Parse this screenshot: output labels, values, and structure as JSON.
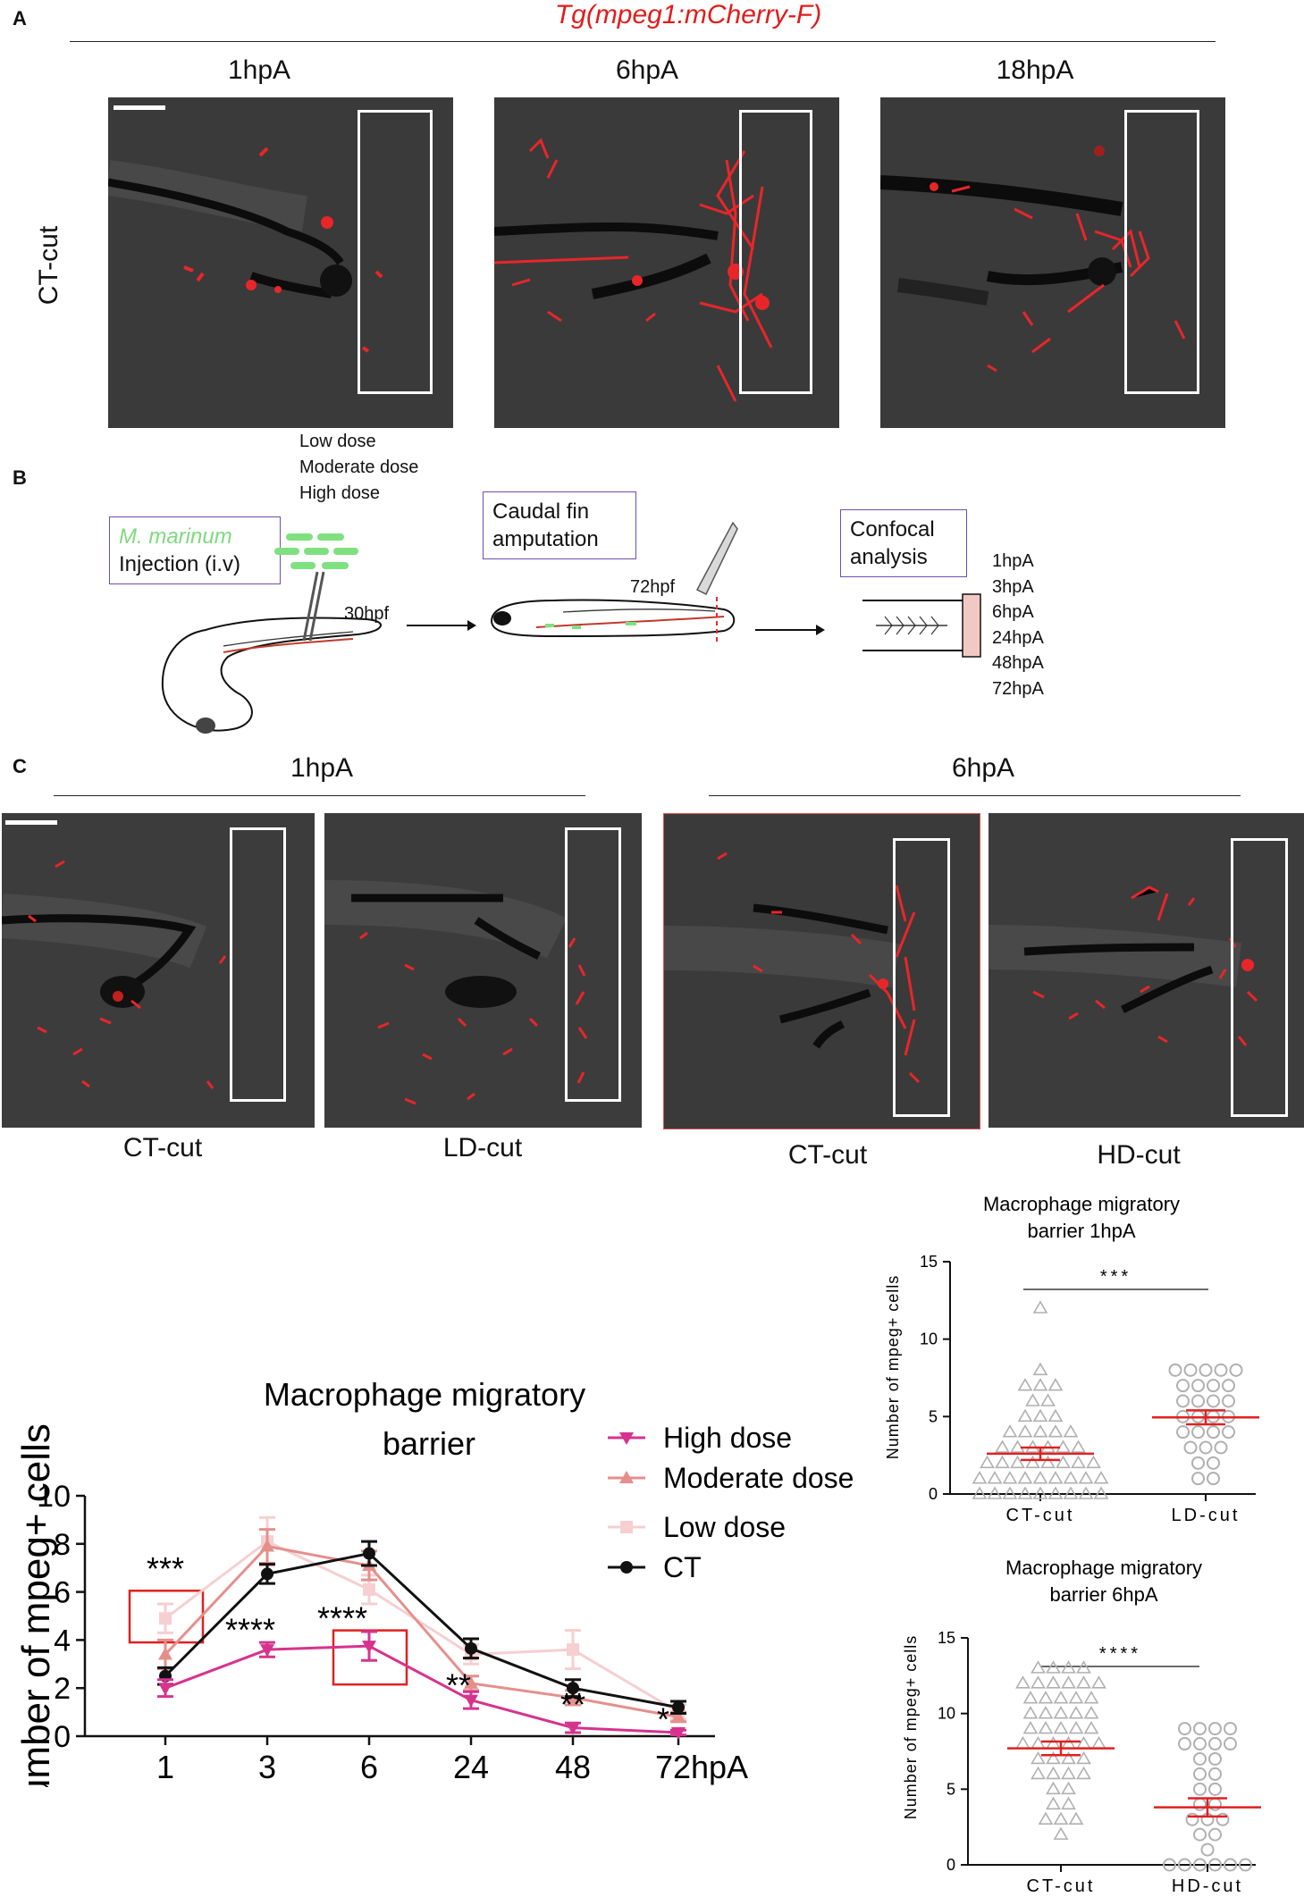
{
  "panelA": {
    "letter": "A",
    "transgene": "Tg(mpeg1:mCherry-F)",
    "row_label": "CT-cut",
    "timepoints": [
      "1hpA",
      "6hpA",
      "18hpA"
    ]
  },
  "panelB": {
    "letter": "B",
    "doses": [
      "Low dose",
      "Moderate dose",
      "High dose"
    ],
    "species": "M. marinum",
    "injection": "Injection (i.v)",
    "inject_time": "30hpf",
    "amputation_box": [
      "Caudal fin",
      "amputation"
    ],
    "amputation_time": "72hpf",
    "confocal_box": [
      "Confocal",
      "analysis"
    ],
    "timepoints": [
      "1hpA",
      "3hpA",
      "6hpA",
      "24hpA",
      "48hpA",
      "72hpA"
    ]
  },
  "panelC": {
    "letter": "C",
    "group_left": "1hpA",
    "group_right": "6hpA",
    "captions": [
      "CT-cut",
      "LD-cut",
      "CT-cut",
      "HD-cut"
    ]
  },
  "colors": {
    "high": "#d6338d",
    "moderate": "#e58f8c",
    "low": "#f6cfd1",
    "ct": "#111111",
    "mean_line": "#e02020",
    "box_red": "#e02020",
    "points": "#b0b0b0"
  },
  "chart_data": [
    {
      "type": "line",
      "title_line1": "Macrophage migratory",
      "title_line2": "barrier",
      "ylabel": "Number of mpeg+ cells",
      "x": [
        "1",
        "3",
        "6",
        "24",
        "48",
        "72hpA"
      ],
      "ylim": [
        0,
        10
      ],
      "yticks": [
        "0",
        "2",
        "4",
        "6",
        "8",
        "10"
      ],
      "legend": [
        "High dose",
        "Moderate dose",
        "Low dose",
        "CT"
      ],
      "series": [
        {
          "name": "High dose",
          "values": [
            2.0,
            3.6,
            3.75,
            1.5,
            0.35,
            0.15
          ],
          "errors": [
            0.35,
            0.3,
            0.6,
            0.35,
            0.2,
            0.1
          ]
        },
        {
          "name": "Moderate dose",
          "values": [
            3.4,
            7.9,
            7.1,
            2.2,
            1.6,
            0.8
          ],
          "errors": [
            0.6,
            0.7,
            0.6,
            0.3,
            0.3,
            0.2
          ]
        },
        {
          "name": "Low dose",
          "values": [
            4.9,
            8.1,
            6.1,
            3.4,
            3.6,
            1.0
          ],
          "errors": [
            0.6,
            1.0,
            0.6,
            0.4,
            0.8,
            0.3
          ]
        },
        {
          "name": "CT",
          "values": [
            2.5,
            6.75,
            7.6,
            3.65,
            2.0,
            1.2
          ],
          "errors": [
            0.35,
            0.4,
            0.5,
            0.4,
            0.35,
            0.25
          ]
        }
      ],
      "annotations": [
        "***",
        "****",
        "****",
        "**",
        "**",
        "*"
      ]
    },
    {
      "type": "scatter",
      "title_line1": "Macrophage migratory",
      "title_line2": "barrier 1hpA",
      "ylabel": "Number of mpeg+ cells",
      "categories": [
        "CT-cut",
        "LD-cut"
      ],
      "ylim": [
        0,
        15
      ],
      "yticks": [
        "0",
        "5",
        "10",
        "15"
      ],
      "significance": "***",
      "means": [
        2.6,
        4.95
      ],
      "sem": [
        0.4,
        0.45
      ]
    },
    {
      "type": "scatter",
      "title_line1": "Macrophage migratory",
      "title_line2": "barrier 6hpA",
      "ylabel": "Number of mpeg+ cells",
      "categories": [
        "CT-cut",
        "HD-cut"
      ],
      "ylim": [
        0,
        15
      ],
      "yticks": [
        "0",
        "5",
        "10",
        "15"
      ],
      "significance": "****",
      "means": [
        7.7,
        3.8
      ],
      "sem": [
        0.45,
        0.6
      ]
    }
  ]
}
